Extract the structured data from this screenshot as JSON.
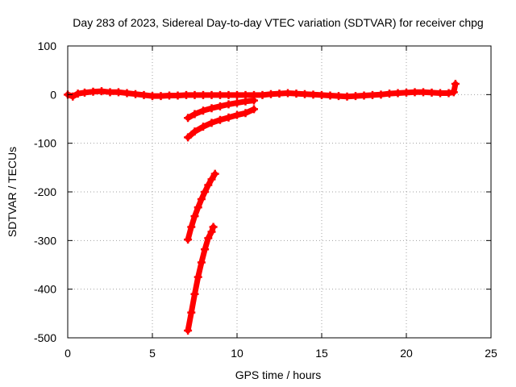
{
  "chart_data": {
    "type": "scatter",
    "title": "Day 283 of 2023, Sidereal Day-to-day VTEC variation (SDTVAR) for receiver chpg",
    "xlabel": "GPS time / hours",
    "ylabel": "SDTVAR / TECUs",
    "xlim": [
      0,
      25
    ],
    "ylim": [
      -500,
      100
    ],
    "xticks": [
      "0",
      "5",
      "10",
      "15",
      "20",
      "25"
    ],
    "yticks": [
      "100",
      "0",
      "-100",
      "-200",
      "-300",
      "-400",
      "-500"
    ],
    "grid": true,
    "series_color": "#ff0000",
    "series": [
      {
        "points": [
          [
            0,
            0
          ],
          [
            0.3,
            -4
          ],
          [
            0.6,
            2
          ],
          [
            1,
            4
          ],
          [
            1.5,
            6
          ],
          [
            2,
            7
          ],
          [
            2.5,
            5
          ],
          [
            3,
            5
          ],
          [
            3.5,
            3
          ],
          [
            4,
            1
          ],
          [
            4.5,
            -1
          ],
          [
            5,
            -3
          ],
          [
            5.5,
            -3
          ],
          [
            6,
            -2
          ],
          [
            6.5,
            -2
          ],
          [
            7,
            -1
          ],
          [
            7.5,
            -1
          ],
          [
            8,
            -1
          ],
          [
            8.5,
            -1
          ],
          [
            9,
            -1
          ],
          [
            9.5,
            -1
          ],
          [
            10,
            -1
          ],
          [
            10.5,
            -1
          ],
          [
            11,
            -1
          ],
          [
            11.5,
            -1
          ],
          [
            12,
            1
          ],
          [
            12.5,
            2
          ],
          [
            13,
            3
          ],
          [
            13.5,
            2
          ],
          [
            14,
            1
          ],
          [
            14.5,
            0
          ],
          [
            15,
            -1
          ],
          [
            15.5,
            -2
          ],
          [
            16,
            -3
          ],
          [
            16.5,
            -4
          ],
          [
            17,
            -3
          ],
          [
            17.5,
            -2
          ],
          [
            18,
            -1
          ],
          [
            18.5,
            0
          ],
          [
            19,
            2
          ],
          [
            19.5,
            3
          ],
          [
            20,
            4
          ],
          [
            20.5,
            5
          ],
          [
            21,
            5
          ],
          [
            21.5,
            4
          ],
          [
            22,
            3
          ],
          [
            22.5,
            3
          ],
          [
            22.8,
            5
          ],
          [
            22.9,
            22
          ]
        ]
      },
      {
        "points": [
          [
            7.1,
            -48
          ],
          [
            7.5,
            -40
          ],
          [
            8,
            -33
          ],
          [
            8.5,
            -28
          ],
          [
            9,
            -24
          ],
          [
            9.5,
            -20
          ],
          [
            10,
            -17
          ],
          [
            10.5,
            -14
          ],
          [
            11,
            -12
          ]
        ]
      },
      {
        "points": [
          [
            7.1,
            -88
          ],
          [
            7.5,
            -76
          ],
          [
            8,
            -66
          ],
          [
            8.5,
            -58
          ],
          [
            9,
            -52
          ],
          [
            9.5,
            -47
          ],
          [
            10,
            -42
          ],
          [
            10.5,
            -38
          ],
          [
            11,
            -30
          ]
        ]
      },
      {
        "points": [
          [
            7.1,
            -298
          ],
          [
            7.3,
            -272
          ],
          [
            7.5,
            -250
          ],
          [
            7.7,
            -232
          ],
          [
            7.9,
            -215
          ],
          [
            8.1,
            -200
          ],
          [
            8.3,
            -186
          ],
          [
            8.5,
            -174
          ],
          [
            8.7,
            -163
          ]
        ]
      },
      {
        "points": [
          [
            7.1,
            -485
          ],
          [
            7.3,
            -448
          ],
          [
            7.5,
            -410
          ],
          [
            7.7,
            -375
          ],
          [
            7.9,
            -345
          ],
          [
            8.1,
            -318
          ],
          [
            8.3,
            -295
          ],
          [
            8.5,
            -282
          ],
          [
            8.6,
            -272
          ]
        ]
      }
    ]
  }
}
